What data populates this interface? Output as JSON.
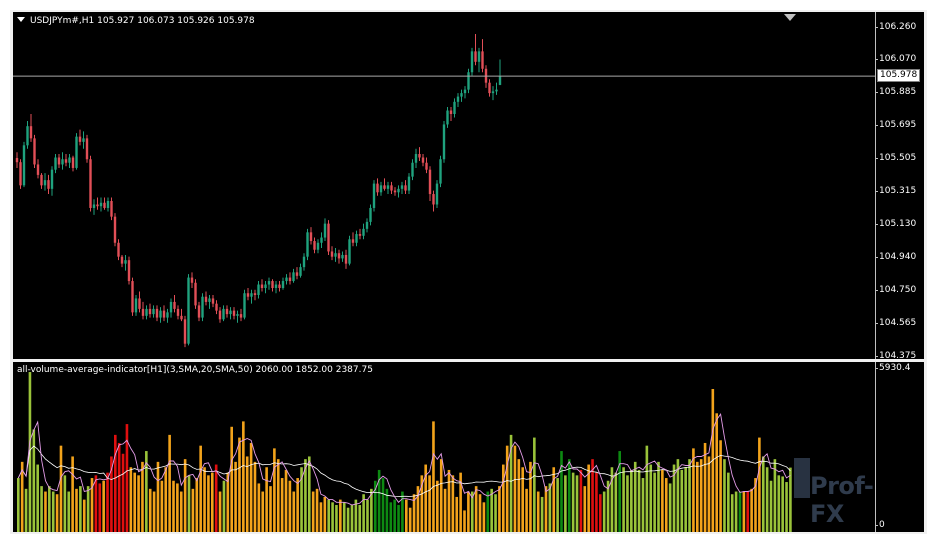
{
  "chart": {
    "symbol_line": "USDJPYm#,H1  105.927 106.073 105.926 105.978",
    "indicator_line": "all-volume-average-indicator[H1](3,SMA,20,SMA,50) 2060.00 1852.00 2387.75",
    "price_ticks": [
      "106.260",
      "106.070",
      "105.885",
      "105.695",
      "105.505",
      "105.315",
      "105.130",
      "104.940",
      "104.750",
      "104.565",
      "104.375"
    ],
    "last_price": "105.978",
    "indicator_ticks": [
      "5930.4",
      "0"
    ],
    "watermark": "Prof-FX",
    "colors": {
      "bull": "#1fa27e",
      "bear": "#e24f57",
      "vol_green_light": "#9ac33a",
      "vol_green_dark": "#0d8a12",
      "vol_orange": "#f2a31b",
      "vol_red": "#e00f0f",
      "ma_fast": "#e49ce8",
      "ma_slow": "#ffffff"
    }
  },
  "chart_data": {
    "type": "candlestick",
    "price_range": [
      104.375,
      106.26
    ],
    "candles": [
      [
        105.507,
        105.54,
        105.45,
        105.483
      ],
      [
        105.483,
        105.5,
        105.33,
        105.35
      ],
      [
        105.35,
        105.6,
        105.34,
        105.58
      ],
      [
        105.58,
        105.72,
        105.56,
        105.69
      ],
      [
        105.69,
        105.76,
        105.6,
        105.62
      ],
      [
        105.62,
        105.64,
        105.45,
        105.47
      ],
      [
        105.47,
        105.5,
        105.39,
        105.41
      ],
      [
        105.41,
        105.42,
        105.33,
        105.35
      ],
      [
        105.35,
        105.42,
        105.32,
        105.38
      ],
      [
        105.38,
        105.41,
        105.3,
        105.33
      ],
      [
        105.33,
        105.46,
        105.29,
        105.44
      ],
      [
        105.44,
        105.53,
        105.42,
        105.51
      ],
      [
        105.51,
        105.53,
        105.45,
        105.47
      ],
      [
        105.47,
        105.54,
        105.44,
        105.5
      ],
      [
        105.5,
        105.53,
        105.46,
        105.48
      ],
      [
        105.48,
        105.53,
        105.45,
        105.51
      ],
      [
        105.51,
        105.52,
        105.43,
        105.45
      ],
      [
        105.45,
        105.65,
        105.44,
        105.63
      ],
      [
        105.63,
        105.67,
        105.58,
        105.6
      ],
      [
        105.6,
        105.66,
        105.56,
        105.62
      ],
      [
        105.62,
        105.64,
        105.48,
        105.5
      ],
      [
        105.5,
        105.52,
        105.2,
        105.22
      ],
      [
        105.22,
        105.27,
        105.18,
        105.24
      ],
      [
        105.24,
        105.28,
        105.21,
        105.23
      ],
      [
        105.23,
        105.28,
        105.2,
        105.25
      ],
      [
        105.25,
        105.28,
        105.21,
        105.22
      ],
      [
        105.22,
        105.28,
        105.2,
        105.26
      ],
      [
        105.26,
        105.28,
        105.15,
        105.17
      ],
      [
        105.17,
        105.19,
        105.0,
        105.02
      ],
      [
        105.02,
        105.04,
        104.92,
        104.94
      ],
      [
        104.94,
        104.95,
        104.88,
        104.9
      ],
      [
        104.9,
        104.95,
        104.86,
        104.92
      ],
      [
        104.92,
        104.94,
        104.78,
        104.8
      ],
      [
        104.8,
        104.82,
        104.6,
        104.62
      ],
      [
        104.62,
        104.72,
        104.6,
        104.7
      ],
      [
        104.7,
        104.74,
        104.62,
        104.64
      ],
      [
        104.64,
        104.68,
        104.58,
        104.6
      ],
      [
        104.6,
        104.66,
        104.58,
        104.64
      ],
      [
        104.64,
        104.67,
        104.59,
        104.61
      ],
      [
        104.61,
        104.66,
        104.59,
        104.64
      ],
      [
        104.64,
        104.66,
        104.57,
        104.59
      ],
      [
        104.59,
        104.65,
        104.56,
        104.63
      ],
      [
        104.63,
        104.66,
        104.57,
        104.59
      ],
      [
        104.59,
        104.64,
        104.56,
        104.62
      ],
      [
        104.62,
        104.7,
        104.59,
        104.68
      ],
      [
        104.68,
        104.72,
        104.62,
        104.64
      ],
      [
        104.64,
        104.66,
        104.58,
        104.6
      ],
      [
        104.6,
        104.64,
        104.57,
        104.58
      ],
      [
        104.58,
        104.6,
        104.42,
        104.44
      ],
      [
        104.44,
        104.84,
        104.43,
        104.82
      ],
      [
        104.82,
        104.85,
        104.76,
        104.79
      ],
      [
        104.79,
        104.81,
        104.64,
        104.66
      ],
      [
        104.66,
        104.68,
        104.57,
        104.59
      ],
      [
        104.59,
        104.73,
        104.57,
        104.71
      ],
      [
        104.71,
        104.74,
        104.66,
        104.68
      ],
      [
        104.68,
        104.72,
        104.64,
        104.7
      ],
      [
        104.7,
        104.72,
        104.65,
        104.67
      ],
      [
        104.67,
        104.69,
        104.61,
        104.63
      ],
      [
        104.63,
        104.65,
        104.56,
        104.58
      ],
      [
        104.58,
        104.66,
        104.57,
        104.64
      ],
      [
        104.64,
        104.66,
        104.59,
        104.61
      ],
      [
        104.61,
        104.65,
        104.58,
        104.63
      ],
      [
        104.63,
        104.65,
        104.58,
        104.6
      ],
      [
        104.6,
        104.63,
        104.56,
        104.61
      ],
      [
        104.61,
        104.64,
        104.57,
        104.59
      ],
      [
        104.59,
        104.75,
        104.58,
        104.73
      ],
      [
        104.73,
        104.76,
        104.69,
        104.71
      ],
      [
        104.71,
        104.75,
        104.67,
        104.73
      ],
      [
        104.73,
        104.75,
        104.69,
        104.72
      ],
      [
        104.72,
        104.8,
        104.7,
        104.78
      ],
      [
        104.78,
        104.81,
        104.74,
        104.76
      ],
      [
        104.76,
        104.8,
        104.73,
        104.78
      ],
      [
        104.78,
        104.82,
        104.75,
        104.8
      ],
      [
        104.8,
        104.81,
        104.74,
        104.76
      ],
      [
        104.76,
        104.8,
        104.73,
        104.78
      ],
      [
        104.78,
        104.8,
        104.74,
        104.76
      ],
      [
        104.76,
        104.82,
        104.75,
        104.8
      ],
      [
        104.8,
        104.84,
        104.78,
        104.82
      ],
      [
        104.82,
        104.85,
        104.78,
        104.8
      ],
      [
        104.8,
        104.87,
        104.79,
        104.85
      ],
      [
        104.85,
        104.88,
        104.81,
        104.83
      ],
      [
        104.83,
        104.9,
        104.82,
        104.88
      ],
      [
        104.88,
        104.96,
        104.86,
        104.94
      ],
      [
        104.94,
        105.1,
        104.92,
        105.08
      ],
      [
        105.08,
        105.11,
        105.01,
        105.03
      ],
      [
        105.03,
        105.05,
        104.96,
        104.98
      ],
      [
        104.98,
        105.04,
        104.96,
        105.02
      ],
      [
        105.02,
        105.08,
        104.99,
        105.05
      ],
      [
        105.05,
        105.16,
        105.03,
        105.13
      ],
      [
        105.13,
        105.15,
        104.95,
        104.97
      ],
      [
        104.97,
        105.0,
        104.92,
        104.94
      ],
      [
        104.94,
        104.99,
        104.91,
        104.96
      ],
      [
        104.96,
        104.98,
        104.9,
        104.93
      ],
      [
        104.93,
        104.97,
        104.91,
        104.95
      ],
      [
        104.95,
        104.98,
        104.87,
        104.9
      ],
      [
        104.9,
        105.06,
        104.89,
        105.04
      ],
      [
        105.04,
        105.08,
        105.0,
        105.02
      ],
      [
        105.02,
        105.09,
        105.0,
        105.07
      ],
      [
        105.07,
        105.1,
        105.04,
        105.06
      ],
      [
        105.06,
        105.13,
        105.04,
        105.1
      ],
      [
        105.1,
        105.16,
        105.08,
        105.14
      ],
      [
        105.14,
        105.24,
        105.12,
        105.22
      ],
      [
        105.22,
        105.38,
        105.2,
        105.36
      ],
      [
        105.36,
        105.39,
        105.29,
        105.31
      ],
      [
        105.31,
        105.37,
        105.29,
        105.35
      ],
      [
        105.35,
        105.39,
        105.32,
        105.33
      ],
      [
        105.33,
        105.37,
        105.3,
        105.35
      ],
      [
        105.35,
        105.37,
        105.3,
        105.32
      ],
      [
        105.32,
        105.34,
        105.29,
        105.31
      ],
      [
        105.31,
        105.35,
        105.28,
        105.33
      ],
      [
        105.33,
        105.37,
        105.3,
        105.35
      ],
      [
        105.35,
        105.38,
        105.3,
        105.32
      ],
      [
        105.32,
        105.42,
        105.3,
        105.4
      ],
      [
        105.4,
        105.5,
        105.38,
        105.48
      ],
      [
        105.48,
        105.56,
        105.45,
        105.53
      ],
      [
        105.53,
        105.57,
        105.49,
        105.51
      ],
      [
        105.51,
        105.53,
        105.46,
        105.48
      ],
      [
        105.48,
        105.51,
        105.42,
        105.44
      ],
      [
        105.44,
        105.46,
        105.26,
        105.3
      ],
      [
        105.3,
        105.32,
        105.2,
        105.24
      ],
      [
        105.24,
        105.38,
        105.22,
        105.36
      ],
      [
        105.36,
        105.52,
        105.34,
        105.5
      ],
      [
        105.5,
        105.72,
        105.48,
        105.7
      ],
      [
        105.7,
        105.8,
        105.68,
        105.78
      ],
      [
        105.78,
        105.8,
        105.72,
        105.76
      ],
      [
        105.76,
        105.85,
        105.74,
        105.83
      ],
      [
        105.83,
        105.88,
        105.8,
        105.86
      ],
      [
        105.86,
        105.9,
        105.83,
        105.88
      ],
      [
        105.88,
        105.92,
        105.85,
        105.9
      ],
      [
        105.9,
        106.02,
        105.88,
        106.0
      ],
      [
        106.0,
        106.14,
        105.98,
        106.12
      ],
      [
        106.12,
        106.22,
        106.04,
        106.06
      ],
      [
        106.06,
        106.14,
        106.0,
        106.12
      ],
      [
        106.12,
        106.19,
        106.0,
        106.02
      ],
      [
        106.02,
        106.04,
        105.91,
        105.94
      ],
      [
        105.94,
        105.96,
        105.86,
        105.88
      ],
      [
        105.88,
        105.92,
        105.84,
        105.89
      ],
      [
        105.89,
        105.94,
        105.87,
        105.9
      ],
      [
        105.927,
        106.073,
        105.926,
        105.978
      ]
    ],
    "volume_range": [
      0,
      5930.4
    ],
    "volumes": [
      2000,
      2600,
      1600,
      5930,
      3800,
      2500,
      1700,
      1500,
      1700,
      1500,
      1400,
      3200,
      2100,
      1500,
      2800,
      1600,
      1700,
      1200,
      1700,
      2000,
      2100,
      1800,
      1900,
      2200,
      2800,
      3600,
      3300,
      2900,
      4000,
      2400,
      2200,
      2100,
      2600,
      3000,
      1600,
      1500,
      2600,
      1900,
      2400,
      3600,
      1900,
      1800,
      1500,
      2700,
      2100,
      1600,
      2000,
      3200,
      2400,
      2100,
      2200,
      2500,
      1500,
      1900,
      2200,
      3900,
      2600,
      3500,
      4100,
      2800,
      3300,
      2600,
      1800,
      1500,
      2400,
      1700,
      3100,
      2700,
      2000,
      2300,
      1900,
      1500,
      2000,
      2400,
      2700,
      2800,
      1500,
      1600,
      1100,
      1300,
      1200,
      1100,
      1000,
      1200,
      1100,
      900,
      1000,
      1200,
      1000,
      1400,
      1200,
      1600,
      1900,
      2300,
      2000,
      1600,
      1100,
      1200,
      1000,
      1500,
      1200,
      900,
      1400,
      1700,
      2100,
      2500,
      2100,
      4100,
      1900,
      2700,
      1600,
      2300,
      2100,
      1300,
      2200,
      800,
      1500,
      1500,
      1700,
      1400,
      1100,
      1500,
      1600,
      1400,
      1700,
      2500,
      3200,
      3600,
      3200,
      2700,
      2400,
      1600,
      2600,
      3500,
      1500,
      1300,
      1700,
      1800,
      2400,
      2000,
      3000,
      2100,
      2700,
      2200,
      2100,
      2300,
      1700,
      2500,
      2700,
      2200,
      1400,
      1500,
      1900,
      2400,
      2200,
      3000,
      2400,
      2100,
      2300,
      2600,
      2300,
      2000,
      3200,
      2500,
      2200,
      2600,
      2300,
      2000,
      1800,
      2500,
      2700,
      2300,
      2400,
      2700,
      3100,
      2600,
      2700,
      3300,
      2800,
      5300,
      4400,
      3400,
      2700,
      2200,
      1400,
      1500,
      1500,
      1500,
      1500,
      1600,
      2000,
      3500,
      2800,
      2400,
      1900,
      2700,
      2100,
      2060,
      1852,
      2387
    ],
    "volume_colors": [
      "g",
      "o",
      "g",
      "g",
      "g",
      "g",
      "g",
      "o",
      "g",
      "g",
      "o",
      "o",
      "g",
      "g",
      "o",
      "o",
      "g",
      "o",
      "g",
      "o",
      "r",
      "r",
      "o",
      "r",
      "r",
      "r",
      "r",
      "r",
      "r",
      "o",
      "o",
      "o",
      "o",
      "g",
      "o",
      "o",
      "o",
      "o",
      "o",
      "o",
      "o",
      "o",
      "o",
      "o",
      "g",
      "o",
      "o",
      "o",
      "o",
      "o",
      "o",
      "r",
      "o",
      "g",
      "o",
      "o",
      "o",
      "o",
      "o",
      "o",
      "o",
      "o",
      "o",
      "o",
      "o",
      "o",
      "o",
      "o",
      "o",
      "o",
      "o",
      "o",
      "o",
      "g",
      "g",
      "g",
      "o",
      "o",
      "o",
      "o",
      "g",
      "g",
      "g",
      "o",
      "g",
      "g",
      "g",
      "g",
      "g",
      "g",
      "g",
      "g",
      "G",
      "G",
      "G",
      "G",
      "G",
      "G",
      "G",
      "G",
      "o",
      "o",
      "o",
      "o",
      "o",
      "o",
      "o",
      "o",
      "o",
      "o",
      "o",
      "o",
      "o",
      "o",
      "o",
      "o",
      "o",
      "g",
      "o",
      "o",
      "o",
      "G",
      "g",
      "g",
      "o",
      "o",
      "o",
      "g",
      "o",
      "o",
      "o",
      "o",
      "o",
      "g",
      "o",
      "g",
      "o",
      "g",
      "o",
      "g",
      "G",
      "g",
      "G",
      "g",
      "g",
      "r",
      "o",
      "o",
      "r",
      "r",
      "r",
      "g",
      "g",
      "g",
      "g",
      "G",
      "g",
      "g",
      "g",
      "g",
      "g",
      "g",
      "g",
      "g",
      "g",
      "g",
      "o",
      "o",
      "g",
      "g",
      "g",
      "g",
      "g",
      "g",
      "o",
      "o",
      "o",
      "o",
      "o",
      "o",
      "o",
      "o",
      "g",
      "g",
      "g",
      "g",
      "G",
      "o",
      "r",
      "o",
      "o",
      "o",
      "g",
      "g",
      "g",
      "g",
      "g",
      "g",
      "g",
      "g"
    ]
  }
}
